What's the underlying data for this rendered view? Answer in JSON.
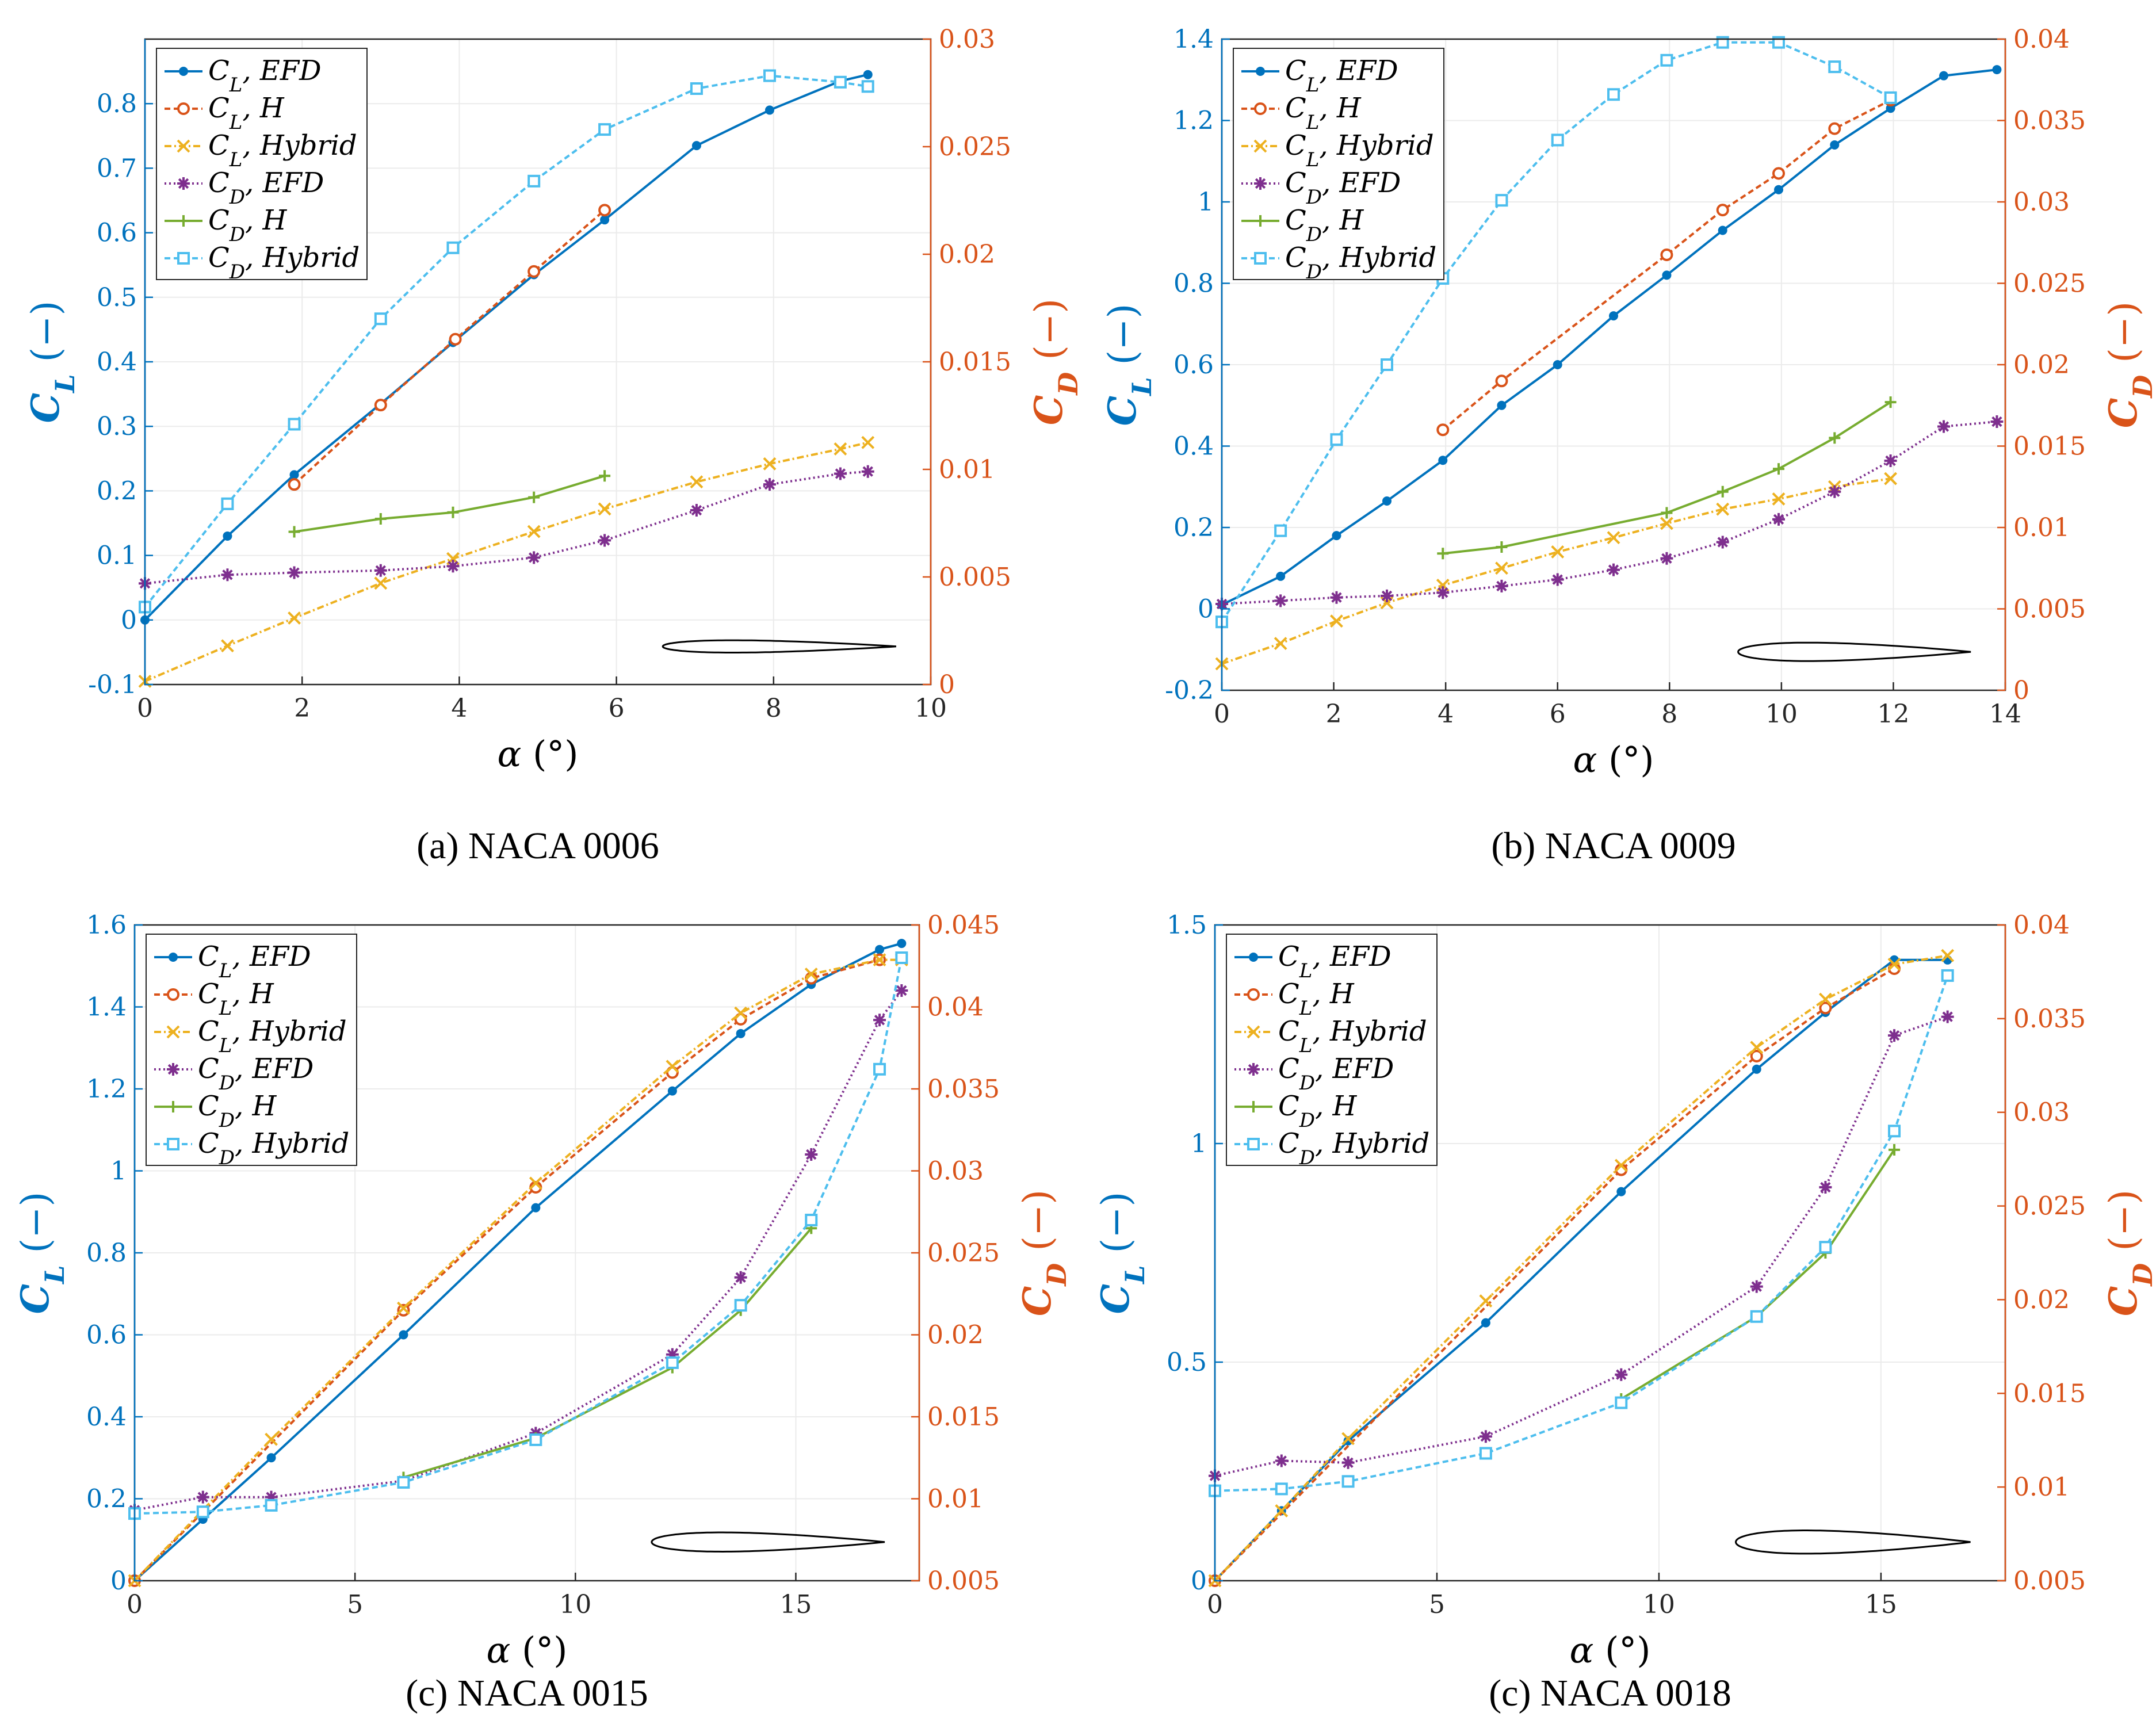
{
  "colors": {
    "left_axis": "#0072BD",
    "right_axis": "#D95319",
    "CL_EFD": "#0072BD",
    "CL_H": "#D95319",
    "CL_Hybrid": "#EDB120",
    "CD_EFD": "#7E2F8E",
    "CD_H": "#77AC30",
    "CD_Hybrid": "#4DBEEE",
    "grid": "#ebebeb",
    "axes": "#262626"
  },
  "chart_data": [
    {
      "id": "naca0006",
      "type": "line",
      "caption": "(a) NACA 0006",
      "xlabel": "α (°)",
      "ylabel_left": "C_L (−)",
      "ylabel_right": "C_D (−)",
      "xlim": [
        0,
        10
      ],
      "ylim_left": [
        -0.1,
        0.9
      ],
      "ylim_right": [
        0,
        0.03
      ],
      "x_ticks": [
        0,
        2,
        4,
        6,
        8,
        10
      ],
      "x_tick_labels": [
        "0",
        "2",
        "4",
        "6",
        "8",
        "10"
      ],
      "y_left_ticks": [
        -0.1,
        0,
        0.1,
        0.2,
        0.3,
        0.4,
        0.5,
        0.6,
        0.7,
        0.8
      ],
      "y_left_tick_labels": [
        "-0.1",
        "0",
        "0.1",
        "0.2",
        "0.3",
        "0.4",
        "0.5",
        "0.6",
        "0.7",
        "0.8"
      ],
      "y_right_ticks": [
        0,
        0.005,
        0.01,
        0.015,
        0.02,
        0.025,
        0.03
      ],
      "y_right_tick_labels": [
        "0",
        "0.005",
        "0.01",
        "0.015",
        "0.02",
        "0.025",
        "0.03"
      ],
      "airfoil_thickness": 0.06,
      "legend": [
        "C_L, EFD",
        "C_L, H",
        "C_L, Hybrid",
        "C_D, EFD",
        "C_D, H",
        "C_D, Hybrid"
      ],
      "series": [
        {
          "name": "C_L, EFD",
          "key": "CL_EFD",
          "axis": "left",
          "marker": "dot",
          "dash": "",
          "x": [
            0,
            1.05,
            1.9,
            3.0,
            3.92,
            4.95,
            5.85,
            7.02,
            7.95,
            8.85,
            9.2
          ],
          "y": [
            0,
            0.13,
            0.225,
            0.335,
            0.43,
            0.535,
            0.62,
            0.735,
            0.79,
            0.835,
            0.845
          ]
        },
        {
          "name": "C_L, H",
          "key": "CL_H",
          "axis": "left",
          "marker": "circle",
          "dash": "10,6",
          "x": [
            1.9,
            3.0,
            3.95,
            4.95,
            5.85
          ],
          "y": [
            0.21,
            0.333,
            0.435,
            0.54,
            0.635
          ]
        },
        {
          "name": "C_L, Hybrid",
          "key": "CL_Hybrid",
          "axis": "left",
          "marker": "x",
          "dash": "12,5,3,5",
          "x": [
            0,
            1.05,
            1.9,
            3.0,
            3.92,
            4.95,
            5.85,
            7.02,
            7.95,
            8.85,
            9.2
          ],
          "y": [
            -0.095,
            -0.04,
            0.003,
            0.057,
            0.095,
            0.137,
            0.172,
            0.214,
            0.242,
            0.265,
            0.275
          ]
        },
        {
          "name": "C_D, EFD",
          "key": "CD_EFD",
          "axis": "right",
          "marker": "star",
          "dash": "3,5",
          "x": [
            0,
            1.05,
            1.9,
            3.0,
            3.92,
            4.95,
            5.85,
            7.02,
            7.95,
            8.85,
            9.2
          ],
          "y": [
            0.0047,
            0.0051,
            0.0052,
            0.0053,
            0.0055,
            0.0059,
            0.0067,
            0.0081,
            0.0093,
            0.0098,
            0.0099
          ]
        },
        {
          "name": "C_D, H",
          "key": "CD_H",
          "axis": "right",
          "marker": "plus",
          "dash": "",
          "x": [
            1.9,
            3.0,
            3.92,
            4.95,
            5.85
          ],
          "y": [
            0.0071,
            0.0077,
            0.008,
            0.0087,
            0.0097
          ]
        },
        {
          "name": "C_D, Hybrid",
          "key": "CD_Hybrid",
          "axis": "right",
          "marker": "square",
          "dash": "10,6",
          "x": [
            0,
            1.05,
            1.9,
            3.0,
            3.92,
            4.95,
            5.85,
            7.02,
            7.95,
            8.85,
            9.2
          ],
          "y": [
            0.0036,
            0.0084,
            0.0121,
            0.017,
            0.0203,
            0.0234,
            0.0258,
            0.0277,
            0.0283,
            0.028,
            0.0278
          ]
        }
      ]
    },
    {
      "id": "naca0009",
      "type": "line",
      "caption": "(b) NACA 0009",
      "xlabel": "α (°)",
      "ylabel_left": "C_L (−)",
      "ylabel_right": "C_D (−)",
      "xlim": [
        0,
        14
      ],
      "ylim_left": [
        -0.2,
        1.4
      ],
      "ylim_right": [
        0,
        0.04
      ],
      "x_ticks": [
        0,
        2,
        4,
        6,
        8,
        10,
        12,
        14
      ],
      "x_tick_labels": [
        "0",
        "2",
        "4",
        "6",
        "8",
        "10",
        "12",
        "14"
      ],
      "y_left_ticks": [
        -0.2,
        0,
        0.2,
        0.4,
        0.6,
        0.8,
        1,
        1.2,
        1.4
      ],
      "y_left_tick_labels": [
        "-0.2",
        "0",
        "0.2",
        "0.4",
        "0.6",
        "0.8",
        "1",
        "1.2",
        "1.4"
      ],
      "y_right_ticks": [
        0,
        0.005,
        0.01,
        0.015,
        0.02,
        0.025,
        0.03,
        0.035,
        0.04
      ],
      "y_right_tick_labels": [
        "0",
        "0.005",
        "0.01",
        "0.015",
        "0.02",
        "0.025",
        "0.03",
        "0.035",
        "0.04"
      ],
      "airfoil_thickness": 0.09,
      "legend": [
        "C_L, EFD",
        "C_L, H",
        "C_L, Hybrid",
        "C_D, EFD",
        "C_D, H",
        "C_D, Hybrid"
      ],
      "series": [
        {
          "name": "C_L, EFD",
          "key": "CL_EFD",
          "axis": "left",
          "marker": "dot",
          "dash": "",
          "x": [
            0,
            1.05,
            2.05,
            2.95,
            3.95,
            5.0,
            6.0,
            7.0,
            7.95,
            8.95,
            9.95,
            10.95,
            11.95,
            12.9,
            13.85
          ],
          "y": [
            0.01,
            0.08,
            0.18,
            0.265,
            0.365,
            0.5,
            0.6,
            0.72,
            0.82,
            0.93,
            1.03,
            1.14,
            1.23,
            1.31,
            1.325
          ]
        },
        {
          "name": "C_L, H",
          "key": "CL_H",
          "axis": "left",
          "marker": "circle",
          "dash": "10,6",
          "x": [
            3.95,
            5.0,
            7.95,
            8.95,
            9.95,
            10.95,
            11.95
          ],
          "y": [
            0.44,
            0.56,
            0.87,
            0.98,
            1.07,
            1.18,
            1.25
          ]
        },
        {
          "name": "C_L, Hybrid",
          "key": "CL_Hybrid",
          "axis": "left",
          "marker": "x",
          "dash": "12,5,3,5",
          "x": [
            0,
            1.05,
            2.05,
            2.95,
            3.95,
            5.0,
            6.0,
            7.0,
            7.95,
            8.95,
            9.95,
            10.95,
            11.95
          ],
          "y": [
            -0.135,
            -0.085,
            -0.03,
            0.015,
            0.058,
            0.1,
            0.14,
            0.175,
            0.21,
            0.245,
            0.27,
            0.3,
            0.32
          ]
        },
        {
          "name": "C_D, EFD",
          "key": "CD_EFD",
          "axis": "right",
          "marker": "star",
          "dash": "3,5",
          "x": [
            0,
            1.05,
            2.05,
            2.95,
            3.95,
            5.0,
            6.0,
            7.0,
            7.95,
            8.95,
            9.95,
            10.95,
            11.95,
            12.9,
            13.85
          ],
          "y": [
            0.0053,
            0.0055,
            0.0057,
            0.0058,
            0.006,
            0.0064,
            0.0068,
            0.0074,
            0.0081,
            0.0091,
            0.0105,
            0.0122,
            0.0141,
            0.0162,
            0.0165
          ]
        },
        {
          "name": "C_D, H",
          "key": "CD_H",
          "axis": "right",
          "marker": "plus",
          "dash": "",
          "x": [
            3.95,
            5.0,
            7.95,
            8.95,
            9.95,
            10.95,
            11.95
          ],
          "y": [
            0.0084,
            0.0088,
            0.0109,
            0.0122,
            0.0136,
            0.0155,
            0.0177
          ]
        },
        {
          "name": "C_D, Hybrid",
          "key": "CD_Hybrid",
          "axis": "right",
          "marker": "square",
          "dash": "10,6",
          "x": [
            0,
            1.05,
            2.05,
            2.95,
            3.95,
            5.0,
            6.0,
            7.0,
            7.95,
            8.95,
            9.95,
            10.95,
            11.95
          ],
          "y": [
            0.0042,
            0.0098,
            0.0154,
            0.02,
            0.0253,
            0.0301,
            0.0338,
            0.0366,
            0.0387,
            0.0398,
            0.0398,
            0.0383,
            0.0364
          ]
        }
      ]
    },
    {
      "id": "naca0015",
      "type": "line",
      "caption": "(c) NACA 0015",
      "xlabel": "α (°)",
      "ylabel_left": "C_L (−)",
      "ylabel_right": "C_D (−)",
      "xlim": [
        0,
        17.8
      ],
      "ylim_left": [
        0,
        1.6
      ],
      "ylim_right": [
        0.005,
        0.045
      ],
      "x_ticks": [
        0,
        5,
        10,
        15
      ],
      "x_tick_labels": [
        "0",
        "5",
        "10",
        "15"
      ],
      "y_left_ticks": [
        0,
        0.2,
        0.4,
        0.6,
        0.8,
        1,
        1.2,
        1.4,
        1.6
      ],
      "y_left_tick_labels": [
        "0",
        "0.2",
        "0.4",
        "0.6",
        "0.8",
        "1",
        "1.2",
        "1.4",
        "1.6"
      ],
      "y_right_ticks": [
        0.005,
        0.01,
        0.015,
        0.02,
        0.025,
        0.03,
        0.035,
        0.04,
        0.045
      ],
      "y_right_tick_labels": [
        "0.005",
        "0.01",
        "0.015",
        "0.02",
        "0.025",
        "0.03",
        "0.035",
        "0.04",
        "0.045"
      ],
      "airfoil_thickness": 0.15,
      "legend": [
        "C_L, EFD",
        "C_L, H",
        "C_L, Hybrid",
        "C_D, EFD",
        "C_D, H",
        "C_D, Hybrid"
      ],
      "series": [
        {
          "name": "C_L, EFD",
          "key": "CL_EFD",
          "axis": "left",
          "marker": "dot",
          "dash": "",
          "x": [
            0,
            1.55,
            3.1,
            6.1,
            9.1,
            12.2,
            13.75,
            15.35,
            16.9,
            17.4
          ],
          "y": [
            0,
            0.15,
            0.3,
            0.6,
            0.91,
            1.195,
            1.335,
            1.455,
            1.54,
            1.555
          ]
        },
        {
          "name": "C_L, H",
          "key": "CL_H",
          "axis": "left",
          "marker": "circle",
          "dash": "10,6",
          "x": [
            0,
            6.1,
            9.1,
            12.2,
            13.75,
            15.35,
            16.9
          ],
          "y": [
            0,
            0.66,
            0.96,
            1.24,
            1.37,
            1.47,
            1.515
          ]
        },
        {
          "name": "C_L, Hybrid",
          "key": "CL_Hybrid",
          "axis": "left",
          "marker": "x",
          "dash": "12,5,3,5",
          "x": [
            0,
            3.1,
            6.1,
            9.1,
            12.2,
            13.75,
            15.35,
            16.9,
            17.4
          ],
          "y": [
            0,
            0.345,
            0.665,
            0.97,
            1.255,
            1.385,
            1.48,
            1.515,
            1.515
          ]
        },
        {
          "name": "C_D, EFD",
          "key": "CD_EFD",
          "axis": "right",
          "marker": "star",
          "dash": "3,5",
          "x": [
            0,
            1.55,
            3.1,
            6.1,
            9.1,
            12.2,
            13.75,
            15.35,
            16.9,
            17.4
          ],
          "y": [
            0.0093,
            0.0101,
            0.0101,
            0.0111,
            0.014,
            0.0188,
            0.0235,
            0.031,
            0.0392,
            0.041
          ]
        },
        {
          "name": "C_D, H",
          "key": "CD_H",
          "axis": "right",
          "marker": "plus",
          "dash": "",
          "x": [
            6.1,
            9.1,
            12.2,
            13.75,
            15.35
          ],
          "y": [
            0.0113,
            0.0137,
            0.018,
            0.0215,
            0.0265
          ]
        },
        {
          "name": "C_D, Hybrid",
          "key": "CD_Hybrid",
          "axis": "right",
          "marker": "square",
          "dash": "10,6",
          "x": [
            0,
            1.55,
            3.1,
            6.1,
            9.1,
            12.2,
            13.75,
            15.35,
            16.9,
            17.4
          ],
          "y": [
            0.0091,
            0.0092,
            0.0096,
            0.011,
            0.0136,
            0.0183,
            0.0218,
            0.027,
            0.0362,
            0.043
          ]
        }
      ]
    },
    {
      "id": "naca0018",
      "type": "line",
      "caption": "(c) NACA 0018",
      "xlabel": "α (°)",
      "ylabel_left": "C_L (−)",
      "ylabel_right": "C_D (−)",
      "xlim": [
        0,
        17.8
      ],
      "ylim_left": [
        0,
        1.5
      ],
      "ylim_right": [
        0.005,
        0.04
      ],
      "x_ticks": [
        0,
        5,
        10,
        15
      ],
      "x_tick_labels": [
        "0",
        "5",
        "10",
        "15"
      ],
      "y_left_ticks": [
        0,
        0.5,
        1,
        1.5
      ],
      "y_left_tick_labels": [
        "0",
        "0.5",
        "1",
        "1.5"
      ],
      "y_right_ticks": [
        0.005,
        0.01,
        0.015,
        0.02,
        0.025,
        0.03,
        0.035,
        0.04
      ],
      "y_right_tick_labels": [
        "0.005",
        "0.01",
        "0.015",
        "0.02",
        "0.025",
        "0.03",
        "0.035",
        "0.04"
      ],
      "airfoil_thickness": 0.18,
      "legend": [
        "C_L, EFD",
        "C_L, H",
        "C_L, Hybrid",
        "C_D, EFD",
        "C_D, H",
        "C_D, Hybrid"
      ],
      "series": [
        {
          "name": "C_L, EFD",
          "key": "CL_EFD",
          "axis": "left",
          "marker": "dot",
          "dash": "",
          "x": [
            0,
            1.5,
            3.0,
            6.1,
            9.15,
            12.2,
            13.75,
            15.3,
            16.5
          ],
          "y": [
            0,
            0.16,
            0.32,
            0.59,
            0.89,
            1.17,
            1.3,
            1.42,
            1.42
          ]
        },
        {
          "name": "C_L, H",
          "key": "CL_H",
          "axis": "left",
          "marker": "circle",
          "dash": "10,6",
          "x": [
            0,
            9.15,
            12.2,
            13.75,
            15.3
          ],
          "y": [
            0,
            0.94,
            1.2,
            1.31,
            1.4
          ]
        },
        {
          "name": "C_L, Hybrid",
          "key": "CL_Hybrid",
          "axis": "left",
          "marker": "x",
          "dash": "12,5,3,5",
          "x": [
            0,
            1.5,
            3.0,
            6.1,
            9.15,
            12.2,
            13.75,
            15.3,
            16.5
          ],
          "y": [
            0,
            0.16,
            0.325,
            0.64,
            0.95,
            1.22,
            1.33,
            1.41,
            1.43
          ]
        },
        {
          "name": "C_D, EFD",
          "key": "CD_EFD",
          "axis": "right",
          "marker": "star",
          "dash": "3,5",
          "x": [
            0,
            1.5,
            3.0,
            6.1,
            9.15,
            12.2,
            13.75,
            15.3,
            16.5
          ],
          "y": [
            0.0106,
            0.0114,
            0.0113,
            0.0127,
            0.016,
            0.0207,
            0.026,
            0.0341,
            0.0351
          ]
        },
        {
          "name": "C_D, H",
          "key": "CD_H",
          "axis": "right",
          "marker": "plus",
          "dash": "",
          "x": [
            9.15,
            12.2,
            13.75,
            15.3
          ],
          "y": [
            0.0147,
            0.0191,
            0.0225,
            0.028
          ]
        },
        {
          "name": "C_D, Hybrid",
          "key": "CD_Hybrid",
          "axis": "right",
          "marker": "square",
          "dash": "10,6",
          "x": [
            0,
            1.5,
            3.0,
            6.1,
            9.15,
            12.2,
            13.75,
            15.3,
            16.5
          ],
          "y": [
            0.0098,
            0.0099,
            0.0103,
            0.0118,
            0.0145,
            0.0191,
            0.0228,
            0.029,
            0.0373
          ]
        }
      ]
    }
  ]
}
